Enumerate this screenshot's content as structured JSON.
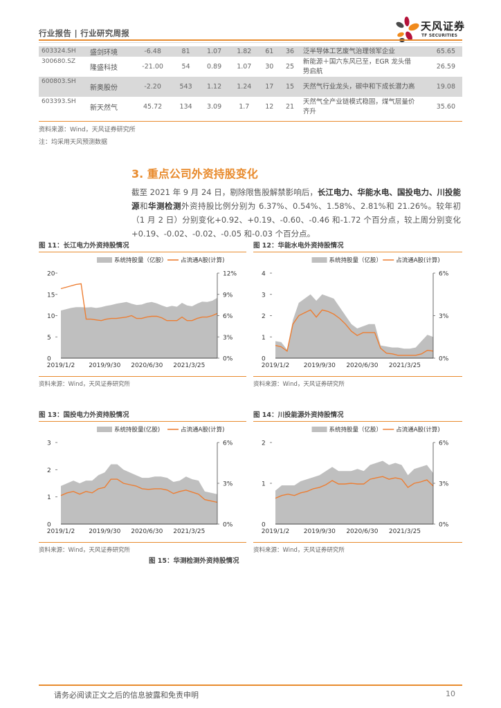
{
  "header": {
    "title": "行业报告 | 行业研究周报",
    "logo_cn": "天风证券",
    "logo_en": "TF SECURITIES"
  },
  "table": {
    "rows": [
      {
        "code": "603324.SH",
        "name": "盛剑环境",
        "c1": "-6.48",
        "c2": "81",
        "c3": "1.07",
        "c4": "1.82",
        "c5": "61",
        "c6": "36",
        "desc": "泛半导体工艺废气治理领军企业",
        "last": "65.65",
        "shade": true
      },
      {
        "code": "300680.SZ",
        "name": "隆盛科技",
        "c1": "-21.00",
        "c2": "54",
        "c3": "0.89",
        "c4": "1.07",
        "c5": "30",
        "c6": "25",
        "desc": "新能源＋国六东风已至，EGR 龙头借势启航",
        "last": "26.59",
        "shade": false
      },
      {
        "code": "600803.SH",
        "name": "新奥股份",
        "c1": "-2.20",
        "c2": "543",
        "c3": "1.12",
        "c4": "1.24",
        "c5": "17",
        "c6": "15",
        "desc": "天然气行业龙头，碳中和下成长潜力高",
        "last": "19.08",
        "shade": true
      },
      {
        "code": "603393.SH",
        "name": "新天然气",
        "c1": "45.72",
        "c2": "134",
        "c3": "3.09",
        "c4": "1.7",
        "c5": "12",
        "c6": "21",
        "desc": "天然气全产业链模式稳固，煤气层量价齐升",
        "last": "35.60",
        "shade": false
      }
    ],
    "source": "资料来源：Wind，天风证券研究所",
    "note": "注：均采用天风预测数据"
  },
  "section": {
    "title": "3. 重点公司外资持股变化",
    "para_1": "截至 2021 年 9 月 24 日，剔除限售股解禁影响后，",
    "para_bold_1": "长江电力、华能水电、国投电力、川投能源",
    "para_2": "和",
    "para_bold_2": "华测检测",
    "para_3": "外资持股比例分别为 6.37%、0.54%、1.58%、2.81%和 21.26%。较年初（1 月 2 日）分别变化+0.92、+0.19、-0.60、-0.46 和-1.72 个百分点，较上周分别变化+0.19、-0.02、-0.02、-0.05 和-0.03 个百分点。"
  },
  "figures": [
    {
      "title": "图 11：长江电力外资持股情况",
      "source": "资料来源：Wind，天风证券研究所"
    },
    {
      "title": "图 12：华能水电外资持股情况",
      "source": "资料来源：Wind，天风证券研究所"
    },
    {
      "title": "图 13：国投电力外资持股情况",
      "source": "资料来源：Wind，天风证券研究所"
    },
    {
      "title": "图 14：川投能源外资持股情况",
      "source": "资料来源：Wind，天风证券研究所"
    }
  ],
  "figure_15_title": "图 15：华测检测外资持股情况",
  "chart_data": [
    {
      "type": "area",
      "title": "图 11：长江电力外资持股情况",
      "legend": [
        "系统持股量（亿股）",
        "占流通A股(计算)"
      ],
      "x_ticks": [
        "2019/1/2",
        "2019/9/30",
        "2020/6/30",
        "2021/3/25"
      ],
      "y_left": {
        "ticks": [
          0,
          5,
          10,
          15,
          20
        ],
        "range": [
          0,
          20
        ]
      },
      "y_right": {
        "ticks": [
          "0%",
          "3%",
          "6%",
          "9%",
          "12%"
        ],
        "range": [
          0,
          12
        ]
      },
      "series": [
        {
          "name": "系统持股量（亿股）",
          "kind": "area",
          "values": [
            11.2,
            11.5,
            11.8,
            12.0,
            12.0,
            11.9,
            12.0,
            11.8,
            12.0,
            12.3,
            12.5,
            12.8,
            13.0,
            13.2,
            12.8,
            12.5,
            12.6,
            13.0,
            13.2,
            12.9,
            12.4,
            12.0,
            12.3,
            12.1,
            13.0,
            12.4,
            12.2,
            12.8,
            13.3,
            13.2,
            13.5,
            14.2
          ]
        },
        {
          "name": "占流通A股(计算)",
          "kind": "line",
          "axis": "right",
          "values": [
            9.8,
            10.0,
            10.2,
            10.4,
            10.5,
            5.5,
            5.5,
            5.4,
            5.3,
            5.5,
            5.6,
            5.6,
            5.7,
            5.8,
            6.0,
            5.6,
            5.6,
            5.8,
            5.9,
            5.9,
            5.7,
            5.3,
            5.3,
            5.3,
            5.8,
            5.3,
            5.3,
            5.6,
            5.8,
            5.8,
            6.0,
            6.3
          ]
        }
      ]
    },
    {
      "type": "area",
      "title": "图 12：华能水电外资持股情况",
      "legend": [
        "系统持股量（亿股）",
        "占流通A股(计算)"
      ],
      "x_ticks": [
        "2019/1/2",
        "2019/9/30",
        "2020/6/30",
        "2021/3/25"
      ],
      "y_left": {
        "ticks": [
          0,
          1,
          2,
          3,
          4
        ],
        "range": [
          0,
          4
        ]
      },
      "y_right": {
        "ticks": [
          "0%",
          "3%",
          "6%"
        ],
        "range": [
          0,
          6
        ]
      },
      "series": [
        {
          "name": "系统持股量（亿股）",
          "kind": "area",
          "values": [
            0.8,
            0.75,
            0.4,
            1.8,
            2.6,
            2.8,
            3.0,
            2.7,
            3.0,
            2.9,
            2.8,
            2.4,
            2.0,
            1.6,
            1.4,
            1.5,
            1.6,
            1.6,
            0.6,
            0.55,
            0.5,
            0.5,
            0.45,
            0.45,
            0.5,
            0.8,
            1.1,
            1.0
          ]
        },
        {
          "name": "占流通A股(计算)",
          "kind": "line",
          "axis": "right",
          "values": [
            0.9,
            0.8,
            0.5,
            2.4,
            3.0,
            3.2,
            3.4,
            2.9,
            3.4,
            3.3,
            3.1,
            2.8,
            2.4,
            1.9,
            1.6,
            1.8,
            1.8,
            1.8,
            0.7,
            0.35,
            0.3,
            0.2,
            0.2,
            0.2,
            0.2,
            0.3,
            0.55,
            0.5
          ]
        }
      ]
    },
    {
      "type": "area",
      "title": "图 13：国投电力外资持股情况",
      "legend": [
        "系统持股量(亿股)",
        "占流通A股(计算)"
      ],
      "x_ticks": [
        "2019/1/2",
        "2019/9/30",
        "2020/6/30",
        "2021/3/25"
      ],
      "y_left": {
        "ticks": [
          0,
          1,
          2,
          3
        ],
        "range": [
          0,
          3
        ]
      },
      "y_right": {
        "ticks": [
          "0%",
          "3%",
          "6%"
        ],
        "range": [
          0,
          6
        ]
      },
      "series": [
        {
          "name": "系统持股量(亿股)",
          "kind": "area",
          "values": [
            1.4,
            1.5,
            1.6,
            1.5,
            1.6,
            1.6,
            1.8,
            1.9,
            2.2,
            2.2,
            2.0,
            1.9,
            1.8,
            1.7,
            1.7,
            1.75,
            1.75,
            1.7,
            1.55,
            1.6,
            1.75,
            1.65,
            1.6,
            1.2,
            1.15,
            1.1
          ]
        },
        {
          "name": "占流通A股(计算)",
          "kind": "line",
          "axis": "right",
          "values": [
            2.1,
            2.3,
            2.4,
            2.2,
            2.4,
            2.3,
            2.6,
            2.7,
            3.3,
            3.3,
            3.0,
            2.9,
            2.8,
            2.6,
            2.55,
            2.6,
            2.6,
            2.5,
            2.25,
            2.4,
            2.5,
            2.35,
            2.2,
            1.8,
            1.7,
            1.6
          ]
        }
      ]
    },
    {
      "type": "area",
      "title": "图 14：川投能源外资持股情况",
      "legend": [
        "系统持股量（亿股）",
        "占流通A股(计算)"
      ],
      "x_ticks": [
        "2019/1/2",
        "2019/9/30",
        "2020/6/30",
        "2021/3/25"
      ],
      "y_left": {
        "ticks": [
          0,
          1,
          2
        ],
        "range": [
          0,
          2
        ]
      },
      "y_right": {
        "ticks": [
          "0%",
          "3%",
          "6%"
        ],
        "range": [
          0,
          6
        ]
      },
      "series": [
        {
          "name": "系统持股量（亿股）",
          "kind": "area",
          "values": [
            0.82,
            0.95,
            0.95,
            0.95,
            1.05,
            1.1,
            1.15,
            1.2,
            1.3,
            1.4,
            1.3,
            1.3,
            1.3,
            1.35,
            1.3,
            1.45,
            1.5,
            1.55,
            1.45,
            1.5,
            1.45,
            1.2,
            1.35,
            1.4,
            1.45,
            1.25
          ]
        },
        {
          "name": "占流通A股(计算)",
          "kind": "line",
          "axis": "right",
          "values": [
            1.9,
            2.1,
            2.2,
            2.1,
            2.3,
            2.4,
            2.6,
            2.7,
            2.9,
            3.2,
            2.95,
            2.95,
            3.0,
            2.95,
            2.95,
            3.3,
            3.4,
            3.5,
            3.3,
            3.4,
            3.3,
            2.7,
            3.0,
            3.1,
            3.25,
            2.8
          ]
        }
      ]
    }
  ],
  "footer": {
    "disclaimer": "请务必阅读正文之后的信息披露和免责申明",
    "page": "10"
  }
}
